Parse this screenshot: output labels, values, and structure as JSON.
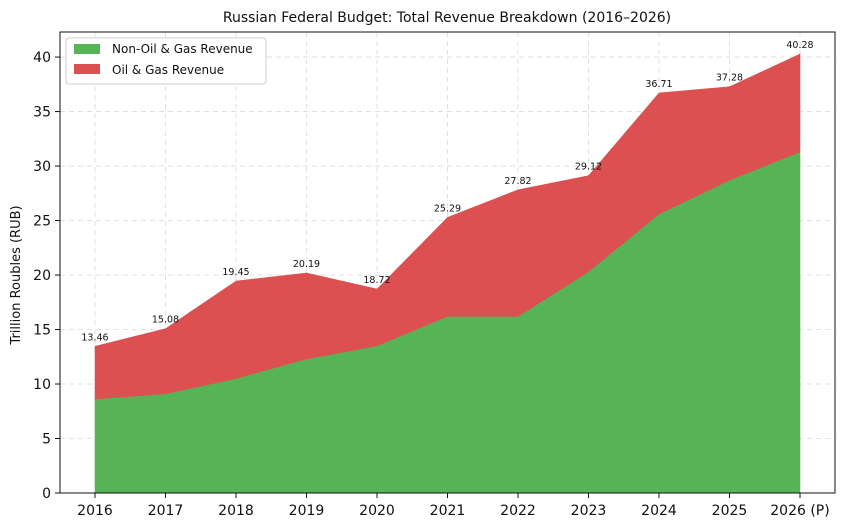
{
  "chart_data": {
    "type": "area",
    "stacked": true,
    "title": "Russian Federal Budget: Total Revenue Breakdown (2016–2026)",
    "xlabel": "",
    "ylabel": "Trillion Roubles (RUB)",
    "categories": [
      "2016",
      "2017",
      "2018",
      "2019",
      "2020",
      "2021",
      "2022",
      "2023",
      "2024",
      "2025",
      "2026 (P)"
    ],
    "series": [
      {
        "name": "Non-Oil & Gas Revenue",
        "color": "#56b356",
        "values": [
          8.62,
          9.1,
          10.5,
          12.3,
          13.5,
          16.2,
          16.2,
          20.3,
          25.6,
          28.7,
          31.3
        ]
      },
      {
        "name": "Oil & Gas Revenue",
        "color": "#dc5051",
        "values": [
          4.84,
          5.98,
          8.95,
          7.89,
          5.22,
          9.09,
          11.62,
          8.82,
          11.11,
          8.58,
          8.98
        ]
      }
    ],
    "totals": [
      13.46,
      15.08,
      19.45,
      20.19,
      18.72,
      25.29,
      27.82,
      29.12,
      36.71,
      37.28,
      40.28
    ],
    "total_labels": [
      "13.46",
      "15.08",
      "19.45",
      "20.19",
      "18.72",
      "25.29",
      "27.82",
      "29.12",
      "36.71",
      "37.28",
      "40.28"
    ],
    "ylim": [
      0,
      42.3
    ],
    "yticks": [
      0,
      5,
      10,
      15,
      20,
      25,
      30,
      35,
      40
    ],
    "grid": true,
    "legend_position": "top-left"
  }
}
